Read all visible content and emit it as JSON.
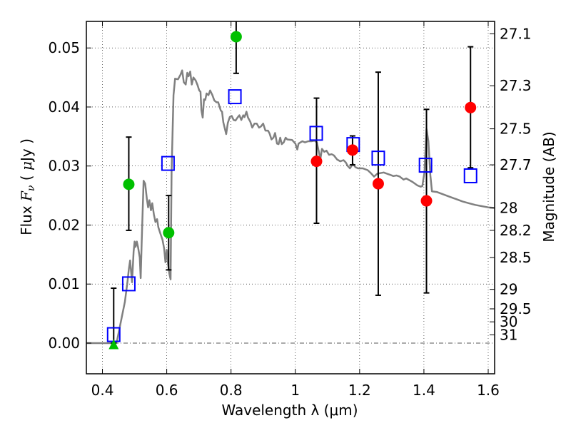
{
  "chart_data": {
    "type": "scatter",
    "title": "",
    "xlabel": "Wavelength  λ (μm)",
    "ylabel": "Flux  Fν  ( μJy )",
    "ylabel_right": "Magnitude (AB)",
    "xlim": [
      0.35,
      1.62
    ],
    "ylim": [
      -0.0052,
      0.0545
    ],
    "grid": true,
    "x_ticks": [
      0.4,
      0.6,
      0.8,
      1.0,
      1.2,
      1.4,
      1.6
    ],
    "x_tick_labels": [
      "0.4",
      "0.6",
      "0.8",
      "1",
      "1.2",
      "1.4",
      "1.6"
    ],
    "y_ticks": [
      0.0,
      0.01,
      0.02,
      0.03,
      0.04,
      0.05
    ],
    "y_tick_labels": [
      "0.00",
      "0.01",
      "0.02",
      "0.03",
      "0.04",
      "0.05"
    ],
    "right_ticks": [
      {
        "label": "27.1",
        "flux": 0.0524
      },
      {
        "label": "27.3",
        "flux": 0.0436
      },
      {
        "label": "27.5",
        "flux": 0.0363
      },
      {
        "label": "27.7",
        "flux": 0.0302
      },
      {
        "label": "28",
        "flux": 0.0229
      },
      {
        "label": "28.2",
        "flux": 0.0191
      },
      {
        "label": "28.5",
        "flux": 0.0145
      },
      {
        "label": "29",
        "flux": 0.0091
      },
      {
        "label": "29.5",
        "flux": 0.0058
      },
      {
        "label": "30",
        "flux": 0.0036
      },
      {
        "label": "31",
        "flux": 0.0014
      }
    ],
    "series": [
      {
        "name": "model-spectrum",
        "kind": "line",
        "color": "#808080",
        "points": [
          [
            0.35,
            0.0
          ],
          [
            0.44,
            0.0
          ],
          [
            0.445,
            0.0003
          ],
          [
            0.455,
            0.003
          ],
          [
            0.47,
            0.007
          ],
          [
            0.478,
            0.0105
          ],
          [
            0.482,
            0.0125
          ],
          [
            0.486,
            0.014
          ],
          [
            0.489,
            0.0122
          ],
          [
            0.492,
            0.0103
          ],
          [
            0.497,
            0.0155
          ],
          [
            0.5,
            0.0172
          ],
          [
            0.503,
            0.0163
          ],
          [
            0.507,
            0.0172
          ],
          [
            0.511,
            0.0162
          ],
          [
            0.516,
            0.0145
          ],
          [
            0.519,
            0.011
          ],
          [
            0.522,
            0.017
          ],
          [
            0.528,
            0.0275
          ],
          [
            0.533,
            0.027
          ],
          [
            0.538,
            0.0245
          ],
          [
            0.542,
            0.023
          ],
          [
            0.546,
            0.0242
          ],
          [
            0.551,
            0.0225
          ],
          [
            0.555,
            0.0237
          ],
          [
            0.56,
            0.0218
          ],
          [
            0.565,
            0.0205
          ],
          [
            0.57,
            0.021
          ],
          [
            0.574,
            0.0196
          ],
          [
            0.58,
            0.0186
          ],
          [
            0.587,
            0.0175
          ],
          [
            0.592,
            0.016
          ],
          [
            0.596,
            0.0137
          ],
          [
            0.6,
            0.0158
          ],
          [
            0.604,
            0.0135
          ],
          [
            0.608,
            0.0118
          ],
          [
            0.612,
            0.0108
          ],
          [
            0.615,
            0.029
          ],
          [
            0.621,
            0.042
          ],
          [
            0.626,
            0.0448
          ],
          [
            0.635,
            0.0447
          ],
          [
            0.643,
            0.0455
          ],
          [
            0.648,
            0.0462
          ],
          [
            0.653,
            0.0442
          ],
          [
            0.659,
            0.0438
          ],
          [
            0.664,
            0.0458
          ],
          [
            0.668,
            0.0452
          ],
          [
            0.673,
            0.046
          ],
          [
            0.678,
            0.0438
          ],
          [
            0.683,
            0.045
          ],
          [
            0.69,
            0.0445
          ],
          [
            0.696,
            0.0437
          ],
          [
            0.701,
            0.0428
          ],
          [
            0.705,
            0.0426
          ],
          [
            0.708,
            0.0394
          ],
          [
            0.712,
            0.0382
          ],
          [
            0.716,
            0.0413
          ],
          [
            0.72,
            0.0412
          ],
          [
            0.724,
            0.0423
          ],
          [
            0.73,
            0.042
          ],
          [
            0.735,
            0.0428
          ],
          [
            0.742,
            0.042
          ],
          [
            0.748,
            0.0411
          ],
          [
            0.755,
            0.0408
          ],
          [
            0.76,
            0.0408
          ],
          [
            0.768,
            0.0394
          ],
          [
            0.772,
            0.0392
          ],
          [
            0.776,
            0.0374
          ],
          [
            0.78,
            0.0365
          ],
          [
            0.785,
            0.0354
          ],
          [
            0.79,
            0.0373
          ],
          [
            0.796,
            0.0383
          ],
          [
            0.802,
            0.0385
          ],
          [
            0.808,
            0.0378
          ],
          [
            0.814,
            0.0377
          ],
          [
            0.82,
            0.0382
          ],
          [
            0.826,
            0.0386
          ],
          [
            0.832,
            0.0378
          ],
          [
            0.838,
            0.0386
          ],
          [
            0.842,
            0.0383
          ],
          [
            0.848,
            0.0392
          ],
          [
            0.853,
            0.0382
          ],
          [
            0.86,
            0.0375
          ],
          [
            0.866,
            0.0365
          ],
          [
            0.873,
            0.0372
          ],
          [
            0.88,
            0.0372
          ],
          [
            0.887,
            0.0365
          ],
          [
            0.893,
            0.0367
          ],
          [
            0.9,
            0.0372
          ],
          [
            0.907,
            0.036
          ],
          [
            0.915,
            0.036
          ],
          [
            0.92,
            0.0355
          ],
          [
            0.926,
            0.0345
          ],
          [
            0.932,
            0.0348
          ],
          [
            0.937,
            0.0356
          ],
          [
            0.943,
            0.0338
          ],
          [
            0.948,
            0.0337
          ],
          [
            0.953,
            0.0348
          ],
          [
            0.958,
            0.0337
          ],
          [
            0.964,
            0.034
          ],
          [
            0.97,
            0.0348
          ],
          [
            0.975,
            0.0345
          ],
          [
            0.99,
            0.0344
          ],
          [
            1.0,
            0.0338
          ],
          [
            1.006,
            0.0328
          ],
          [
            1.01,
            0.0338
          ],
          [
            1.016,
            0.034
          ],
          [
            1.022,
            0.0342
          ],
          [
            1.03,
            0.034
          ],
          [
            1.04,
            0.0342
          ],
          [
            1.05,
            0.0342
          ],
          [
            1.06,
            0.0343
          ],
          [
            1.067,
            0.034
          ],
          [
            1.072,
            0.0327
          ],
          [
            1.078,
            0.0312
          ],
          [
            1.083,
            0.0329
          ],
          [
            1.09,
            0.0324
          ],
          [
            1.097,
            0.0326
          ],
          [
            1.105,
            0.0319
          ],
          [
            1.113,
            0.032
          ],
          [
            1.12,
            0.0318
          ],
          [
            1.13,
            0.0311
          ],
          [
            1.14,
            0.0308
          ],
          [
            1.15,
            0.031
          ],
          [
            1.157,
            0.0306
          ],
          [
            1.163,
            0.03
          ],
          [
            1.17,
            0.0296
          ],
          [
            1.176,
            0.0301
          ],
          [
            1.18,
            0.0303
          ],
          [
            1.187,
            0.0298
          ],
          [
            1.195,
            0.0296
          ],
          [
            1.21,
            0.0296
          ],
          [
            1.225,
            0.0293
          ],
          [
            1.235,
            0.0288
          ],
          [
            1.245,
            0.0282
          ],
          [
            1.255,
            0.0287
          ],
          [
            1.264,
            0.0288
          ],
          [
            1.275,
            0.0289
          ],
          [
            1.285,
            0.0287
          ],
          [
            1.295,
            0.0285
          ],
          [
            1.305,
            0.0283
          ],
          [
            1.315,
            0.0284
          ],
          [
            1.325,
            0.0282
          ],
          [
            1.337,
            0.0277
          ],
          [
            1.345,
            0.0279
          ],
          [
            1.355,
            0.0276
          ],
          [
            1.365,
            0.0273
          ],
          [
            1.38,
            0.0267
          ],
          [
            1.39,
            0.0265
          ],
          [
            1.395,
            0.0266
          ],
          [
            1.402,
            0.029
          ],
          [
            1.408,
            0.0363
          ],
          [
            1.414,
            0.0342
          ],
          [
            1.42,
            0.0285
          ],
          [
            1.425,
            0.0257
          ],
          [
            1.44,
            0.0256
          ],
          [
            1.46,
            0.0252
          ],
          [
            1.48,
            0.0248
          ],
          [
            1.5,
            0.0244
          ],
          [
            1.52,
            0.024
          ],
          [
            1.54,
            0.0237
          ],
          [
            1.56,
            0.0234
          ],
          [
            1.58,
            0.0232
          ],
          [
            1.6,
            0.023
          ],
          [
            1.62,
            0.0229
          ]
        ]
      },
      {
        "name": "model-photometry",
        "kind": "open-square",
        "color": "#0000ff",
        "points": [
          [
            0.435,
            0.0015
          ],
          [
            0.482,
            0.0101
          ],
          [
            0.604,
            0.0305
          ],
          [
            0.812,
            0.0418
          ],
          [
            1.065,
            0.0356
          ],
          [
            1.18,
            0.0337
          ],
          [
            1.258,
            0.0314
          ],
          [
            1.405,
            0.0302
          ],
          [
            1.545,
            0.0284
          ]
        ]
      },
      {
        "name": "observed-green",
        "kind": "filled-circle",
        "color": "#00c000",
        "points": [
          {
            "x": 0.482,
            "y": 0.0269,
            "err_low": 0.0191,
            "err_high": 0.0349
          },
          {
            "x": 0.606,
            "y": 0.0187,
            "err_low": 0.0124,
            "err_high": 0.025
          },
          {
            "x": 0.816,
            "y": 0.0519,
            "err_low": 0.0457,
            "err_high": 0.056
          }
        ]
      },
      {
        "name": "observed-red",
        "kind": "filled-circle",
        "color": "#ff0000",
        "points": [
          {
            "x": 1.066,
            "y": 0.0308,
            "err_low": 0.0203,
            "err_high": 0.0415
          },
          {
            "x": 1.178,
            "y": 0.0327,
            "err_low": 0.0302,
            "err_high": 0.0351
          },
          {
            "x": 1.258,
            "y": 0.027,
            "err_low": 0.0081,
            "err_high": 0.0459
          },
          {
            "x": 1.408,
            "y": 0.0241,
            "err_low": 0.0085,
            "err_high": 0.0396
          },
          {
            "x": 1.545,
            "y": 0.0399,
            "err_low": 0.0297,
            "err_high": 0.0502
          }
        ]
      },
      {
        "name": "upper-limit",
        "kind": "triangle-up",
        "color": "#00c000",
        "points": [
          {
            "x": 0.435,
            "y": -0.0003,
            "err_low": 0.0,
            "err_high": 0.0093
          }
        ]
      }
    ]
  }
}
